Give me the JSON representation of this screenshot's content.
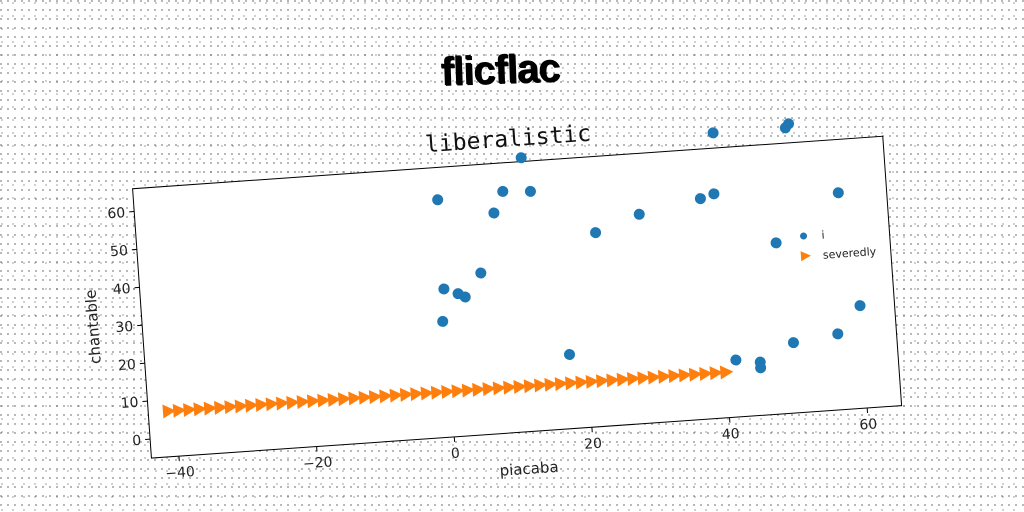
{
  "header": {
    "title": "flicflac"
  },
  "chart_data": {
    "type": "scatter",
    "title": "liberalistic",
    "xlabel": "piacaba",
    "ylabel": "chantable",
    "xlim": [
      -44,
      65
    ],
    "ylim": [
      -5,
      66
    ],
    "xticks": [
      -40,
      -20,
      0,
      20,
      40,
      60
    ],
    "yticks": [
      0,
      10,
      20,
      30,
      40,
      50,
      60
    ],
    "grid": false,
    "legend_position": "right",
    "series": [
      {
        "name": "i",
        "marker": "circle",
        "color": "#1f77b4",
        "points": [
          [
            0,
            57.5
          ],
          [
            12.5,
            67
          ],
          [
            40.5,
            70
          ],
          [
            51,
            70
          ],
          [
            51.5,
            71
          ],
          [
            9.5,
            58.5
          ],
          [
            13.5,
            58
          ],
          [
            8,
            53
          ],
          [
            29,
            50
          ],
          [
            22.5,
            46
          ],
          [
            38,
            53
          ],
          [
            40,
            54
          ],
          [
            58,
            52
          ],
          [
            48.5,
            40
          ],
          [
            5.5,
            37.5
          ],
          [
            0,
            34
          ],
          [
            2,
            32.5
          ],
          [
            3,
            31.5
          ],
          [
            -0.5,
            25.5
          ],
          [
            60,
            22
          ],
          [
            56.5,
            15
          ],
          [
            50,
            13.5
          ],
          [
            17.5,
            14.5
          ],
          [
            41.5,
            10
          ],
          [
            45,
            9
          ],
          [
            45,
            7.5
          ]
        ]
      },
      {
        "name": "severedly",
        "marker": "triangle-right",
        "color": "#ff7f0e",
        "x_start": -41,
        "x_end": 40,
        "x_step": 1.5,
        "y": 7
      }
    ]
  }
}
